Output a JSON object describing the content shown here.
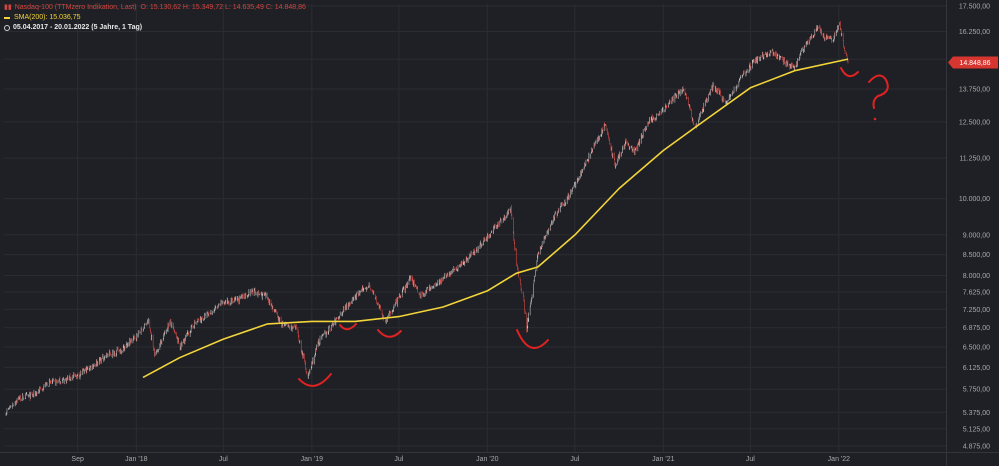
{
  "legend": {
    "title": "Nasdaq-100 (TTMzero Indikation, Last)",
    "ohlc": "O: 15.130,62  H: 15.349,72  L: 14.635,49  C: 14.848,86",
    "sma_label": "SMA(200): 15.036,75",
    "range": "05.04.2017 - 20.01.2022  (5 Jahre, 1 Tag)",
    "icons": [
      "chart-icon",
      "sma-line-swatch",
      "clock-icon"
    ]
  },
  "price_tag": "14.848,86",
  "colors": {
    "background": "#1f2025",
    "grid": "#2b2c31",
    "up": "#bfbfbf",
    "down": "#d64a44",
    "sma": "#f2d43a",
    "annotation": "#e02222",
    "price_tag": "#d6362f"
  },
  "chart_data": {
    "type": "line",
    "title": "Nasdaq-100 (TTMzero Indikation, Last)",
    "xlabel": "",
    "ylabel": "",
    "y_scale": "log",
    "ylim": [
      4875,
      17500
    ],
    "y_ticks": [
      "17.500,00",
      "16.250,00",
      "15.000,00",
      "13.750,00",
      "12.500,00",
      "11.250,00",
      "10.000,00",
      "9.000,00",
      "8.500,00",
      "8.000,00",
      "7.625,00",
      "7.250,00",
      "6.875,00",
      "6.500,00",
      "6.125,00",
      "5.750,00",
      "5.375,00",
      "5.125,00",
      "4.875,00"
    ],
    "y_tick_values": [
      17500,
      16250,
      15000,
      13750,
      12500,
      11250,
      10000,
      9000,
      8500,
      8000,
      7625,
      7250,
      6875,
      6500,
      6125,
      5750,
      5375,
      5125,
      4875
    ],
    "x_ticks": [
      "Sep",
      "Jan '18",
      "Jul",
      "Jan '19",
      "Jul",
      "Jan '20",
      "Jul",
      "Jan '21",
      "Jul",
      "Jan '22"
    ],
    "x_tick_dates": [
      "2017-09-01",
      "2018-01-01",
      "2018-07-01",
      "2019-01-01",
      "2019-07-01",
      "2020-01-01",
      "2020-07-01",
      "2021-01-01",
      "2021-07-01",
      "2022-01-01"
    ],
    "grid": true,
    "series": [
      {
        "name": "Nasdaq-100 (TTMzero Indikation, Last)",
        "x": [
          "2017-04-05",
          "2017-05-01",
          "2017-06-01",
          "2017-07-01",
          "2017-08-01",
          "2017-09-01",
          "2017-10-01",
          "2017-11-01",
          "2017-12-01",
          "2018-01-01",
          "2018-01-26",
          "2018-02-09",
          "2018-03-12",
          "2018-04-02",
          "2018-05-01",
          "2018-06-01",
          "2018-07-01",
          "2018-08-01",
          "2018-08-30",
          "2018-10-01",
          "2018-10-29",
          "2018-11-30",
          "2018-12-24",
          "2019-01-15",
          "2019-02-15",
          "2019-03-15",
          "2019-04-30",
          "2019-06-03",
          "2019-07-26",
          "2019-08-15",
          "2019-09-15",
          "2019-10-15",
          "2019-11-15",
          "2019-12-15",
          "2020-01-15",
          "2020-02-19",
          "2020-03-01",
          "2020-03-16",
          "2020-03-23",
          "2020-04-15",
          "2020-05-15",
          "2020-06-15",
          "2020-07-15",
          "2020-09-02",
          "2020-09-23",
          "2020-10-15",
          "2020-11-01",
          "2020-12-01",
          "2021-01-01",
          "2021-02-12",
          "2021-03-08",
          "2021-04-15",
          "2021-05-12",
          "2021-06-15",
          "2021-07-15",
          "2021-08-15",
          "2021-09-30",
          "2021-10-15",
          "2021-11-19",
          "2021-12-01",
          "2021-12-20",
          "2022-01-03",
          "2022-01-10",
          "2022-01-20"
        ],
        "y": [
          5380,
          5600,
          5650,
          5850,
          5900,
          5980,
          6150,
          6350,
          6450,
          6700,
          7000,
          6350,
          7000,
          6500,
          6950,
          7150,
          7400,
          7450,
          7650,
          7500,
          6950,
          6850,
          5950,
          6600,
          6950,
          7350,
          7800,
          7000,
          7950,
          7550,
          7800,
          8050,
          8350,
          8700,
          9150,
          9700,
          8300,
          7500,
          6850,
          8500,
          9400,
          10000,
          10800,
          12400,
          11000,
          11800,
          11450,
          12500,
          12900,
          13800,
          12300,
          13900,
          13200,
          14300,
          15000,
          15300,
          14600,
          15300,
          16500,
          16000,
          15900,
          16600,
          15700,
          14850
        ]
      },
      {
        "name": "SMA(200)",
        "x": [
          "2018-01-15",
          "2018-04-01",
          "2018-07-01",
          "2018-10-01",
          "2019-01-01",
          "2019-04-01",
          "2019-07-01",
          "2019-10-01",
          "2020-01-01",
          "2020-03-01",
          "2020-04-15",
          "2020-07-01",
          "2020-10-01",
          "2021-01-01",
          "2021-04-01",
          "2021-07-01",
          "2021-10-01",
          "2022-01-20"
        ],
        "y": [
          5950,
          6300,
          6650,
          6950,
          7000,
          7000,
          7100,
          7300,
          7650,
          8050,
          8200,
          9000,
          10300,
          11500,
          12600,
          13800,
          14500,
          15000
        ]
      }
    ]
  }
}
